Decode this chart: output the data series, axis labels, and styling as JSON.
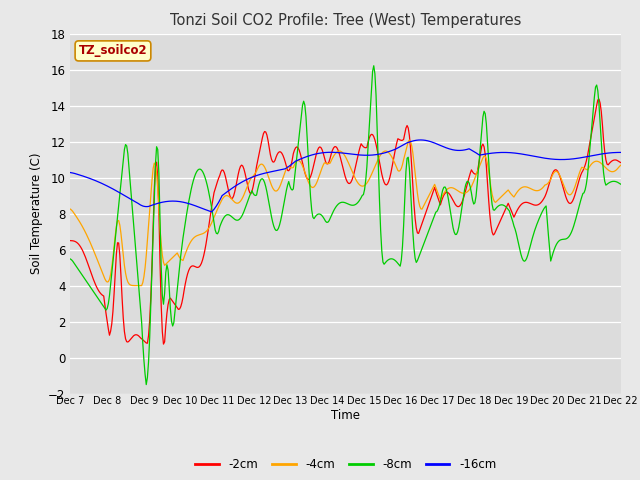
{
  "title": "Tonzi Soil CO2 Profile: Tree (West) Temperatures",
  "xlabel": "Time",
  "ylabel": "Soil Temperature (C)",
  "ylim": [
    -2,
    18
  ],
  "yticks": [
    -2,
    0,
    2,
    4,
    6,
    8,
    10,
    12,
    14,
    16,
    18
  ],
  "legend_label": "TZ_soilco2",
  "series_labels": [
    "-2cm",
    "-4cm",
    "-8cm",
    "-16cm"
  ],
  "series_colors": [
    "#ff0000",
    "#ffa500",
    "#00cc00",
    "#0000ff"
  ],
  "fig_bg_color": "#e8e8e8",
  "plot_bg_color": "#dcdcdc",
  "n_points": 480,
  "x_start": 7,
  "x_end": 22,
  "xtick_days": [
    7,
    8,
    9,
    10,
    11,
    12,
    13,
    14,
    15,
    16,
    17,
    18,
    19,
    20,
    21,
    22
  ]
}
